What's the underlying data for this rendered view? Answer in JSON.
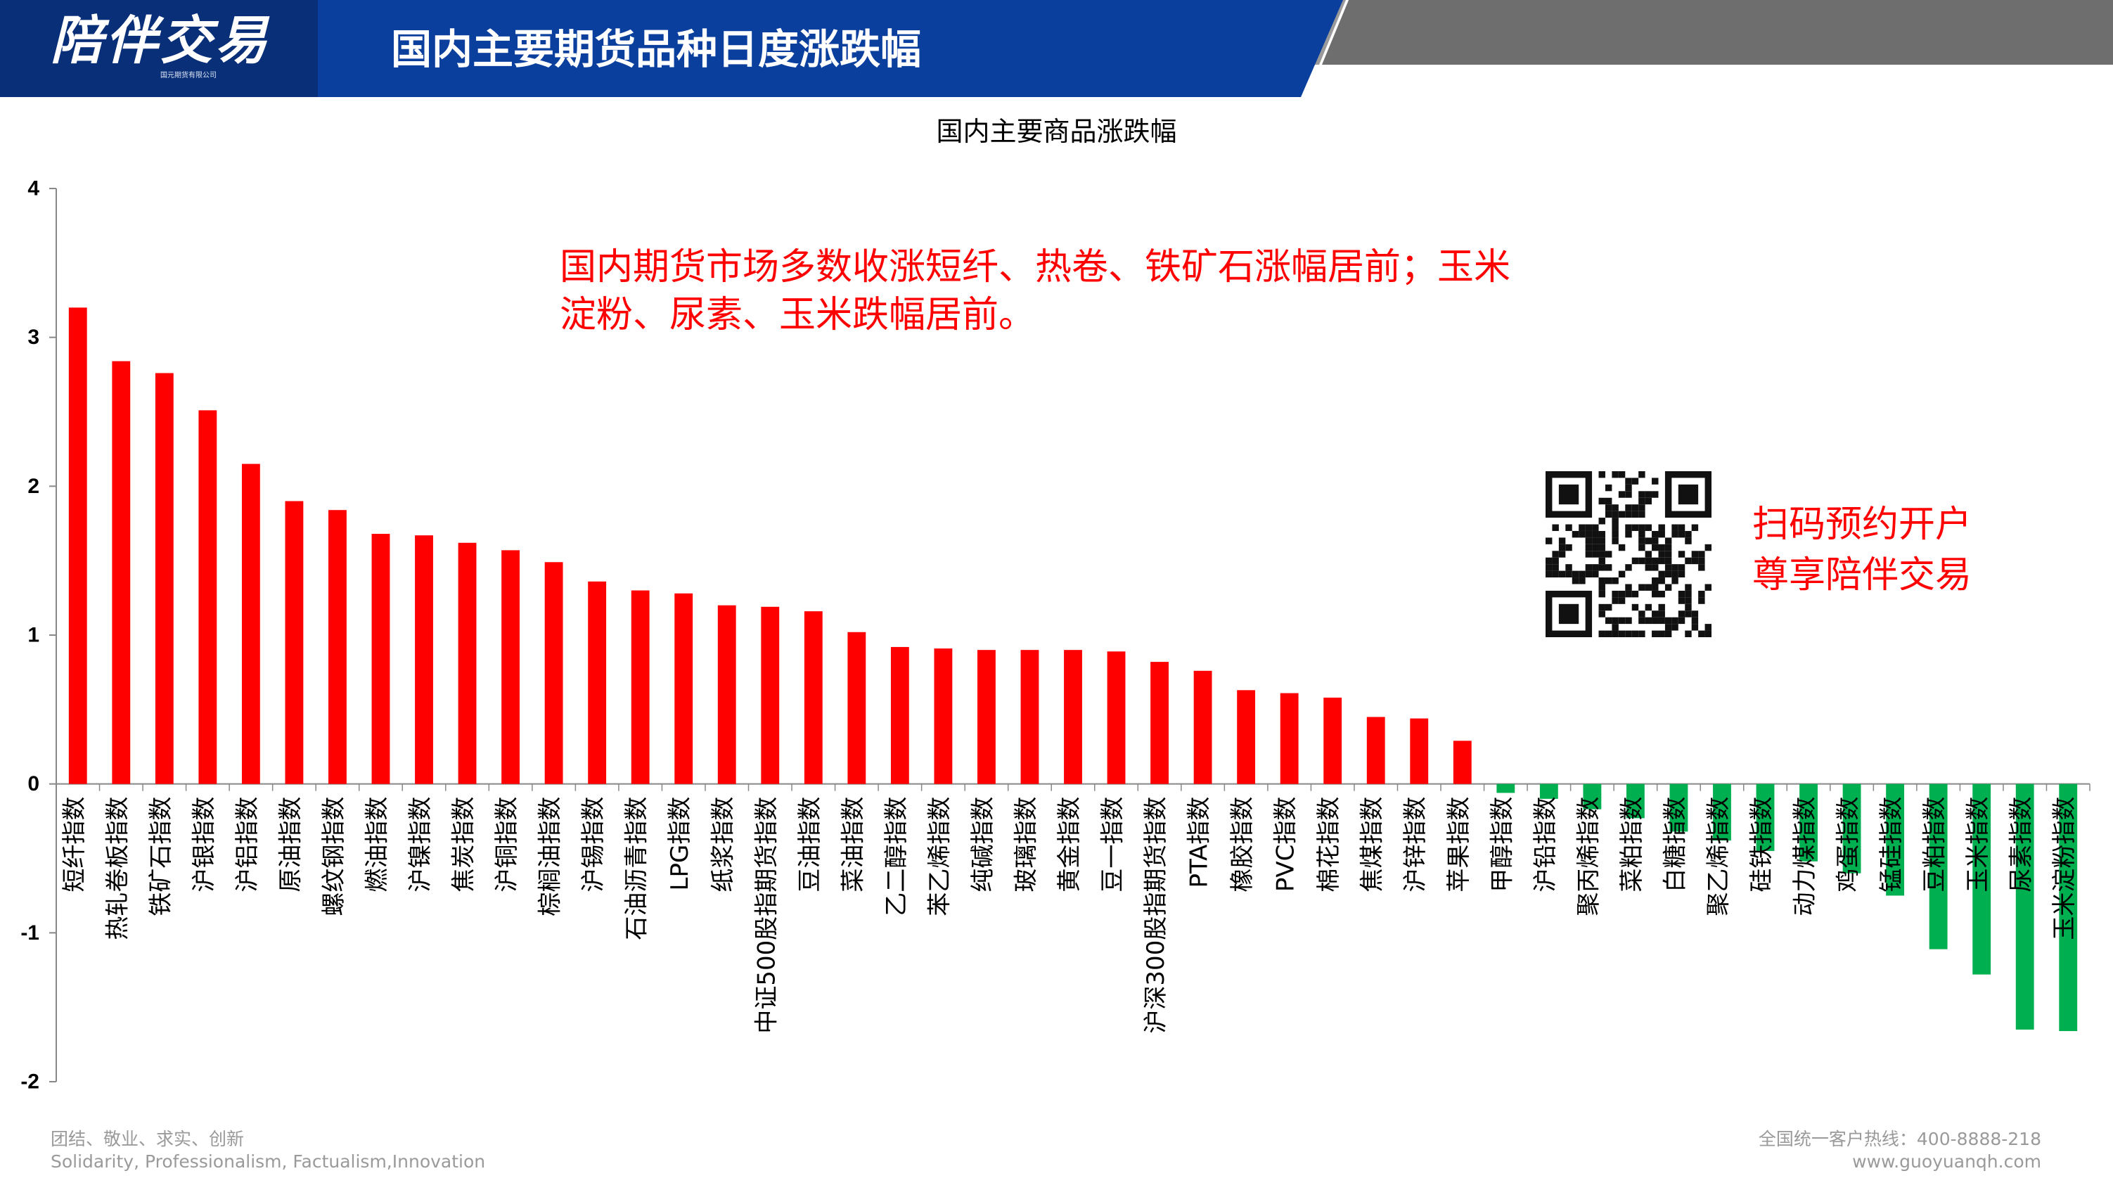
{
  "header": {
    "logo_text": "陪伴交易",
    "logo_subtext": "国元期货有限公司",
    "title": "国内主要期货品种日度涨跌幅",
    "colors": {
      "blue": "#0b3f9e",
      "gray": "#6e6e6e"
    }
  },
  "annotation": {
    "lines": [
      "国内期货市场多数收涨短纤、热卷、铁矿石涨幅居前；玉米",
      "淀粉、尿素、玉米跌幅居前。"
    ]
  },
  "qr": {
    "icon": "qr-code-icon",
    "lines": [
      "扫码预约开户",
      "尊享陪伴交易"
    ]
  },
  "footer": {
    "left_line1": "团结、敬业、求实、创新",
    "left_line2": "Solidarity, Professionalism, Factualism,Innovation",
    "right_line1": "全国统一客户热线：400-8888-218",
    "right_line2": "www.guoyuanqh.com"
  },
  "chart_data": {
    "type": "bar",
    "title": "国内主要商品涨跌幅",
    "xlabel": "",
    "ylabel": "",
    "ylim": [
      -2,
      4
    ],
    "yticks": [
      "4",
      "3",
      "2",
      "1",
      "0",
      "-1",
      "-2"
    ],
    "ytick_values": [
      4,
      3,
      2,
      1,
      0,
      -1,
      -2
    ],
    "grid": false,
    "legend": "none",
    "colors": {
      "positive": "#ff0000",
      "negative": "#00b050"
    },
    "categories": [
      "短纤指数",
      "热轧卷板指数",
      "铁矿石指数",
      "沪银指数",
      "沪铝指数",
      "原油指数",
      "螺纹钢指数",
      "燃油指数",
      "沪镍指数",
      "焦炭指数",
      "沪铜指数",
      "棕榈油指数",
      "沪锡指数",
      "石油沥青指数",
      "LPG指数",
      "纸浆指数",
      "中证500股指期货指数",
      "豆油指数",
      "菜油指数",
      "乙二醇指数",
      "苯乙烯指数",
      "纯碱指数",
      "玻璃指数",
      "黄金指数",
      "豆一指数",
      "沪深300股指期货指数",
      "PTA指数",
      "橡胶指数",
      "PVC指数",
      "棉花指数",
      "焦煤指数",
      "沪锌指数",
      "苹果指数",
      "甲醇指数",
      "沪铅指数",
      "聚丙烯指数",
      "菜粕指数",
      "白糖指数",
      "聚乙烯指数",
      "硅铁指数",
      "动力煤指数",
      "鸡蛋指数",
      "锰硅指数",
      "豆粕指数",
      "玉米指数",
      "尿素指数",
      "玉米淀粉指数"
    ],
    "values": [
      3.2,
      2.84,
      2.76,
      2.51,
      2.15,
      1.9,
      1.84,
      1.68,
      1.67,
      1.62,
      1.57,
      1.49,
      1.36,
      1.3,
      1.28,
      1.2,
      1.19,
      1.16,
      1.02,
      0.92,
      0.91,
      0.9,
      0.9,
      0.9,
      0.89,
      0.82,
      0.76,
      0.63,
      0.61,
      0.58,
      0.45,
      0.44,
      0.29,
      -0.06,
      -0.1,
      -0.17,
      -0.23,
      -0.32,
      -0.38,
      -0.45,
      -0.52,
      -0.6,
      -0.75,
      -1.11,
      -1.28,
      -1.65,
      -1.66
    ]
  }
}
